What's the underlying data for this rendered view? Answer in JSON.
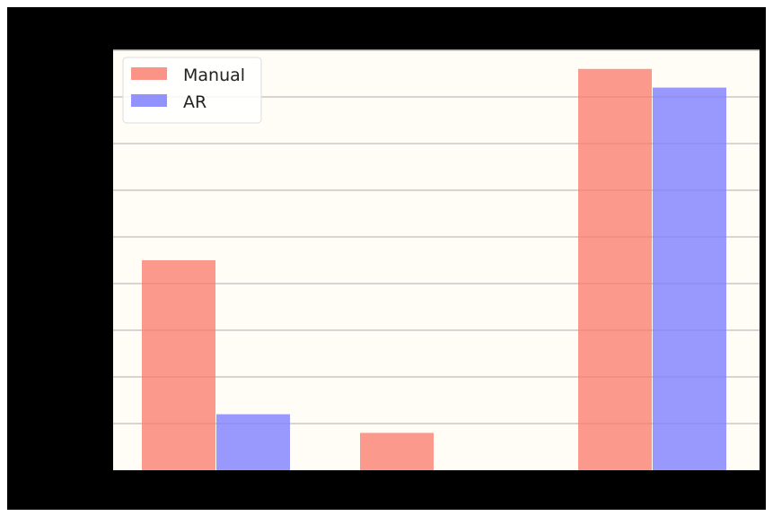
{
  "chart_data": {
    "type": "bar",
    "title": "",
    "xlabel": "",
    "ylabel": "",
    "categories": [
      "",
      "",
      ""
    ],
    "ylim": [
      0,
      9
    ],
    "grid": "horizontal",
    "legend_position": "top-left",
    "series": [
      {
        "name": "Manual",
        "color": "#fa8072",
        "values": [
          4.5,
          0.8,
          8.6
        ]
      },
      {
        "name": "AR",
        "color": "#8080ff",
        "values": [
          1.2,
          0,
          8.2
        ]
      }
    ],
    "figure_background": "#000000",
    "plot_background": "#fffdf5"
  }
}
